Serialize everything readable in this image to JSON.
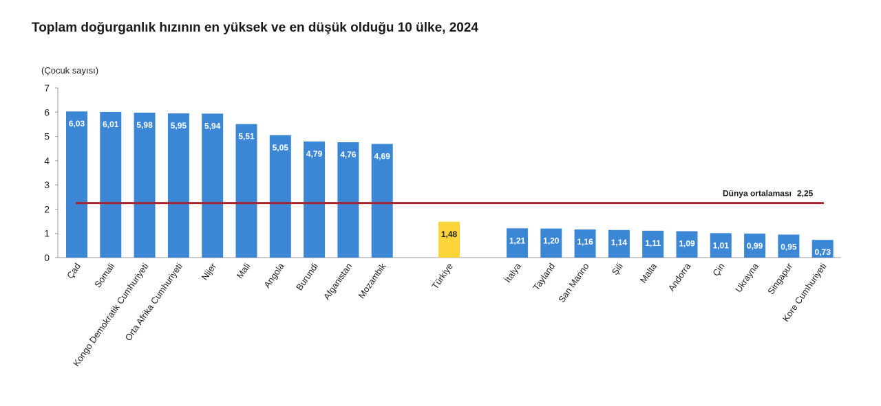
{
  "chart_data": {
    "type": "bar",
    "title": "Toplam doğurganlık hızının en yüksek ve en düşük olduğu 10 ülke, 2024",
    "ylabel": "(Çocuk sayısı)",
    "ylim": [
      0,
      7
    ],
    "yticks": [
      0,
      1,
      2,
      3,
      4,
      5,
      6,
      7
    ],
    "grid": false,
    "colors": {
      "bar": "#3b87d6",
      "highlight": "#ffd43b",
      "reference": "#a8232b"
    },
    "groups": [
      {
        "categories": [
          "Çad",
          "Somali",
          "Kongo Demokratik Cumhuriyeti",
          "Orta Afrika Cumhuriyeti",
          "Nijer",
          "Mali",
          "Angola",
          "Burundi",
          "Afganistan",
          "Mozambik"
        ],
        "values": [
          6.03,
          6.01,
          5.98,
          5.95,
          5.94,
          5.51,
          5.05,
          4.79,
          4.76,
          4.69
        ],
        "labels": [
          "6,03",
          "6,01",
          "5,98",
          "5,95",
          "5,94",
          "5,51",
          "5,05",
          "4,79",
          "4,76",
          "4,69"
        ]
      },
      {
        "categories": [
          "Türkiye"
        ],
        "values": [
          1.48
        ],
        "labels": [
          "1,48"
        ],
        "highlight": true
      },
      {
        "categories": [
          "İtalya",
          "Tayland",
          "San Marino",
          "Şili",
          "Malta",
          "Andorra",
          "Çin",
          "Ukrayna",
          "Singapur",
          "Kore Cumhuriyeti"
        ],
        "values": [
          1.21,
          1.2,
          1.16,
          1.14,
          1.11,
          1.09,
          1.01,
          0.99,
          0.95,
          0.73
        ],
        "labels": [
          "1,21",
          "1,20",
          "1,16",
          "1,14",
          "1,11",
          "1,09",
          "1,01",
          "0,99",
          "0,95",
          "0,73"
        ]
      }
    ],
    "reference_line": {
      "label": "Dünya ortalaması",
      "value": 2.25,
      "value_label": "2,25"
    }
  }
}
